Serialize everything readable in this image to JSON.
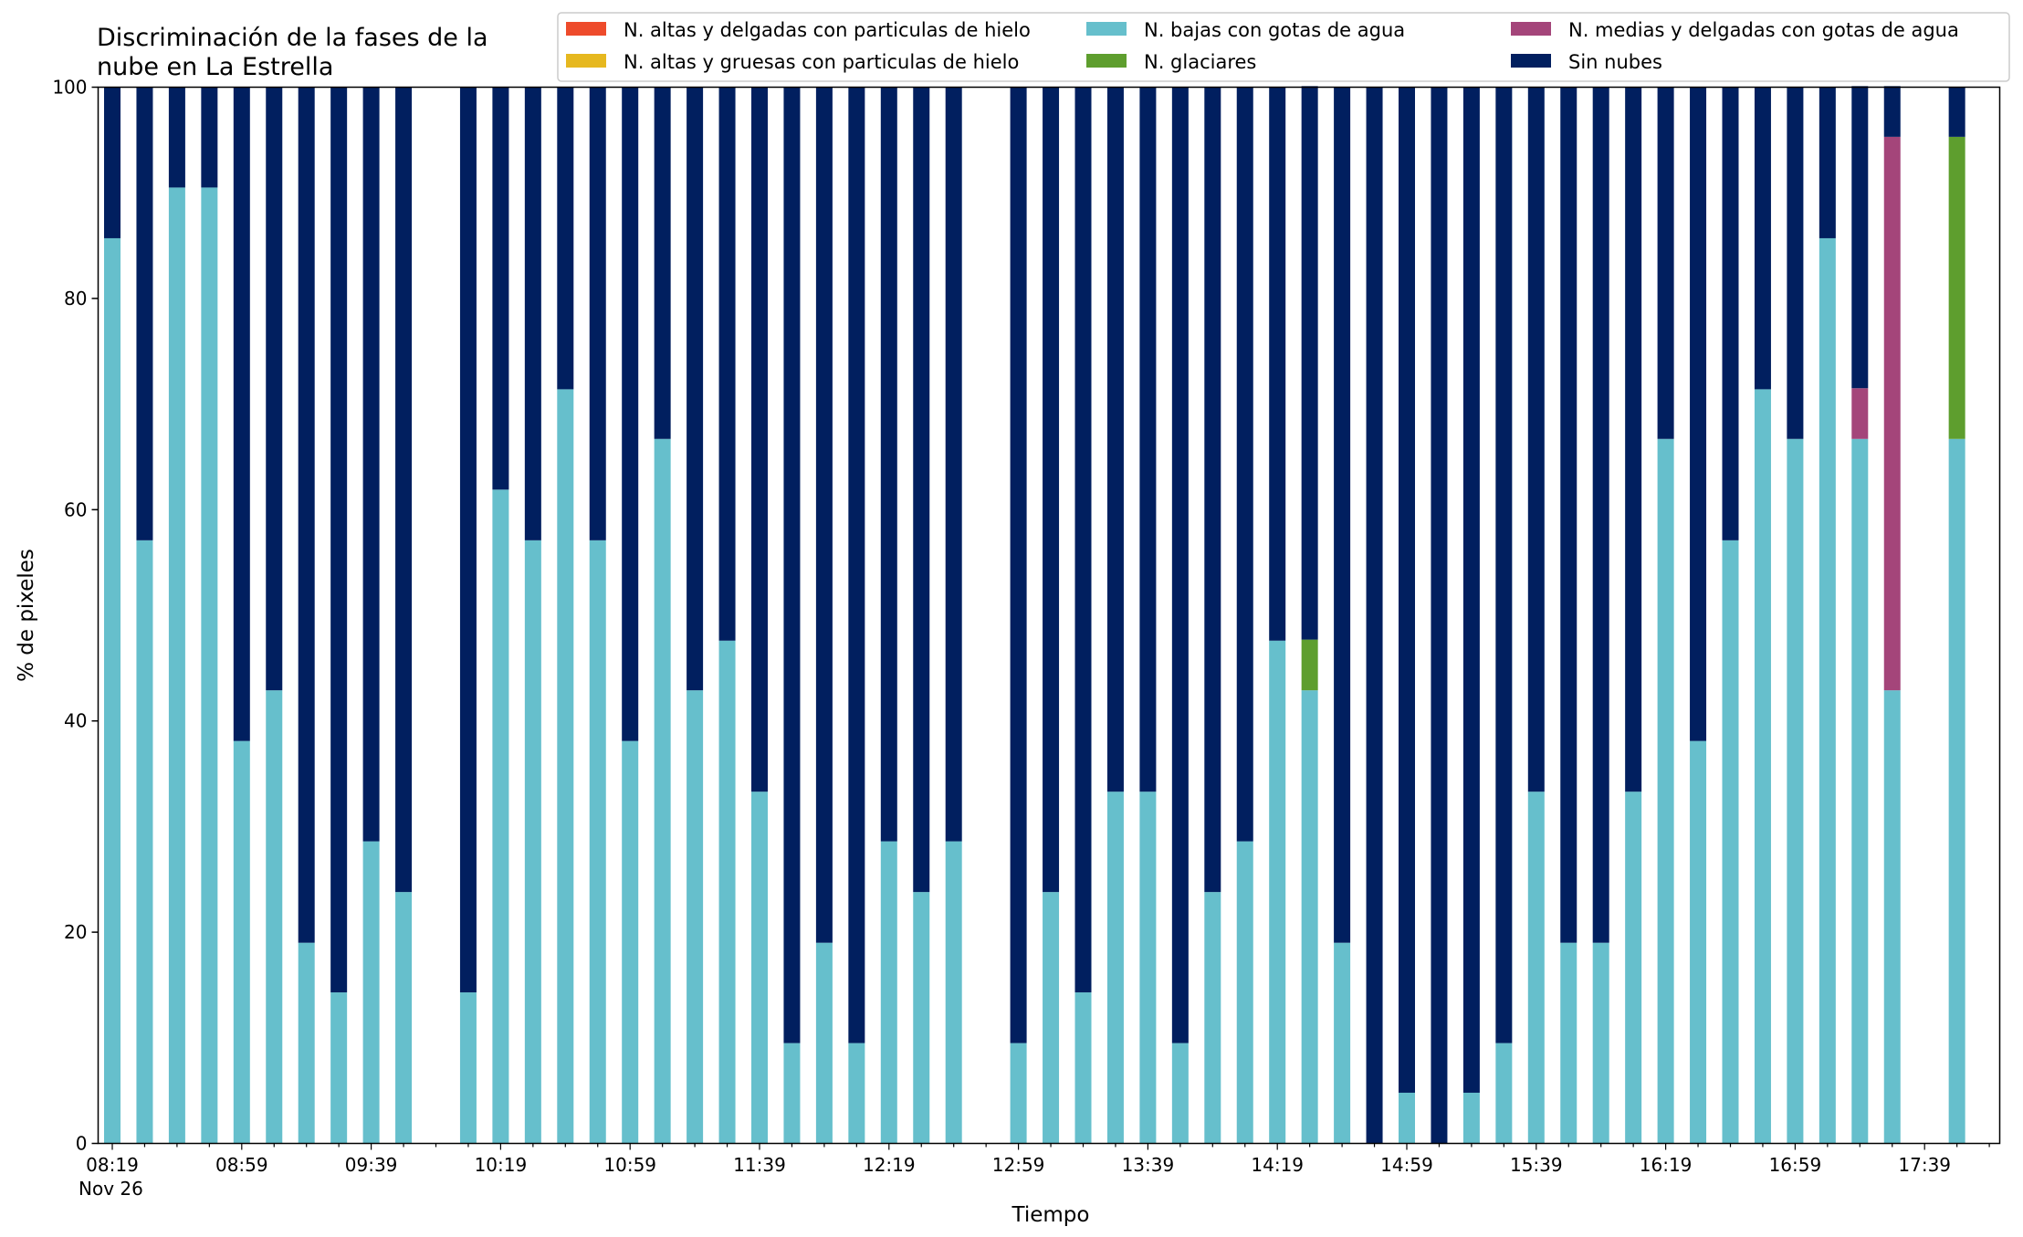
{
  "chart_data": {
    "type": "bar",
    "stacked": true,
    "title": "Discriminación de la fases de la\nnube en La Estrella",
    "xlabel": "Tiempo",
    "ylabel": "% de pixeles",
    "ylim": [
      0,
      100
    ],
    "yticks": [
      0,
      20,
      40,
      60,
      80,
      100
    ],
    "x_start": "08:19",
    "x_step_minutes": 10,
    "x_tick_labels": [
      "08:19",
      "08:59",
      "09:39",
      "10:19",
      "10:59",
      "11:39",
      "12:19",
      "12:59",
      "13:39",
      "14:19",
      "14:59",
      "15:39",
      "16:19",
      "16:59",
      "17:39"
    ],
    "x_date_label": "Nov 26",
    "grid": false,
    "legend_position": "top-right",
    "colors": {
      "altas_delgadas": "#ee4b2b",
      "altas_gruesas": "#e6b81f",
      "bajas": "#66bfcc",
      "glaciares": "#5e9e2e",
      "medias": "#a4457a",
      "sin_nubes": "#011f5f"
    },
    "series": [
      {
        "key": "altas_delgadas",
        "name": "N. altas y delgadas con particulas de hielo",
        "values": [
          0,
          0,
          0,
          0,
          0,
          0,
          0,
          0,
          0,
          0,
          0,
          0,
          0,
          0,
          0,
          0,
          0,
          0,
          0,
          0,
          0,
          0,
          0,
          0,
          0,
          0,
          0,
          0,
          0,
          0,
          0,
          0,
          0,
          0,
          0,
          0,
          0,
          0,
          0,
          0,
          0,
          0,
          0,
          0,
          0,
          0,
          0,
          0,
          0,
          0,
          0,
          0,
          0,
          0,
          0,
          0,
          0,
          0,
          0
        ]
      },
      {
        "key": "altas_gruesas",
        "name": "N. altas y gruesas con particulas de hielo",
        "values": [
          0,
          0,
          0,
          0,
          0,
          0,
          0,
          0,
          0,
          0,
          0,
          0,
          0,
          0,
          0,
          0,
          0,
          0,
          0,
          0,
          0,
          0,
          0,
          0,
          0,
          0,
          0,
          0,
          0,
          0,
          0,
          0,
          0,
          0,
          0,
          0,
          0,
          0,
          0,
          0,
          0,
          0,
          0,
          0,
          0,
          0,
          0,
          0,
          0,
          0,
          0,
          0,
          0,
          0,
          0,
          0,
          0,
          0,
          0
        ]
      },
      {
        "key": "bajas",
        "name": "N. bajas con gotas de agua",
        "values": [
          85.7,
          57.1,
          90.5,
          90.5,
          38.1,
          42.9,
          19.0,
          14.3,
          28.6,
          23.8,
          null,
          14.3,
          61.9,
          57.1,
          71.4,
          57.1,
          38.1,
          66.7,
          42.9,
          47.6,
          33.3,
          9.5,
          19.0,
          9.5,
          28.6,
          23.8,
          28.6,
          null,
          9.5,
          23.8,
          14.3,
          33.3,
          33.3,
          9.5,
          23.8,
          28.6,
          47.6,
          42.9,
          19.0,
          0,
          4.8,
          0,
          4.8,
          9.5,
          33.3,
          19.0,
          19.0,
          33.3,
          66.7,
          38.1,
          57.1,
          71.4,
          66.7,
          85.7,
          66.7,
          42.9,
          null,
          66.7,
          null
        ]
      },
      {
        "key": "glaciares",
        "name": "N. glaciares",
        "values": [
          0,
          0,
          0,
          0,
          0,
          0,
          0,
          0,
          0,
          0,
          null,
          0,
          0,
          0,
          0,
          0,
          0,
          0,
          0,
          0,
          0,
          0,
          0,
          0,
          0,
          0,
          0,
          null,
          0,
          0,
          0,
          0,
          0,
          0,
          0,
          0,
          0,
          4.8,
          0,
          0,
          0,
          0,
          0,
          0,
          0,
          0,
          0,
          0,
          0,
          0,
          0,
          0,
          0,
          0,
          0,
          0,
          null,
          28.6,
          null
        ]
      },
      {
        "key": "medias",
        "name": "N. medias y delgadas con gotas de agua",
        "values": [
          0,
          0,
          0,
          0,
          0,
          0,
          0,
          0,
          0,
          0,
          null,
          0,
          0,
          0,
          0,
          0,
          0,
          0,
          0,
          0,
          0,
          0,
          0,
          0,
          0,
          0,
          0,
          null,
          0,
          0,
          0,
          0,
          0,
          0,
          0,
          0,
          0,
          0,
          0,
          0,
          0,
          0,
          0,
          0,
          0,
          0,
          0,
          0,
          0,
          0,
          0,
          0,
          0,
          0,
          4.8,
          52.4,
          null,
          0,
          null
        ]
      },
      {
        "key": "sin_nubes",
        "name": "Sin nubes",
        "values": [
          14.3,
          42.9,
          9.5,
          9.5,
          61.9,
          57.1,
          81.0,
          85.7,
          71.4,
          76.2,
          null,
          85.7,
          38.1,
          42.9,
          28.6,
          42.9,
          61.9,
          33.3,
          57.1,
          52.4,
          66.7,
          90.5,
          81.0,
          90.5,
          71.4,
          76.2,
          71.4,
          null,
          90.5,
          76.2,
          85.7,
          66.7,
          66.7,
          90.5,
          76.2,
          71.4,
          52.4,
          52.4,
          81.0,
          100,
          95.2,
          100,
          95.2,
          90.5,
          66.7,
          81.0,
          81.0,
          66.7,
          33.3,
          61.9,
          42.9,
          28.6,
          33.3,
          14.3,
          28.6,
          4.8,
          null,
          4.7,
          null
        ]
      }
    ]
  }
}
